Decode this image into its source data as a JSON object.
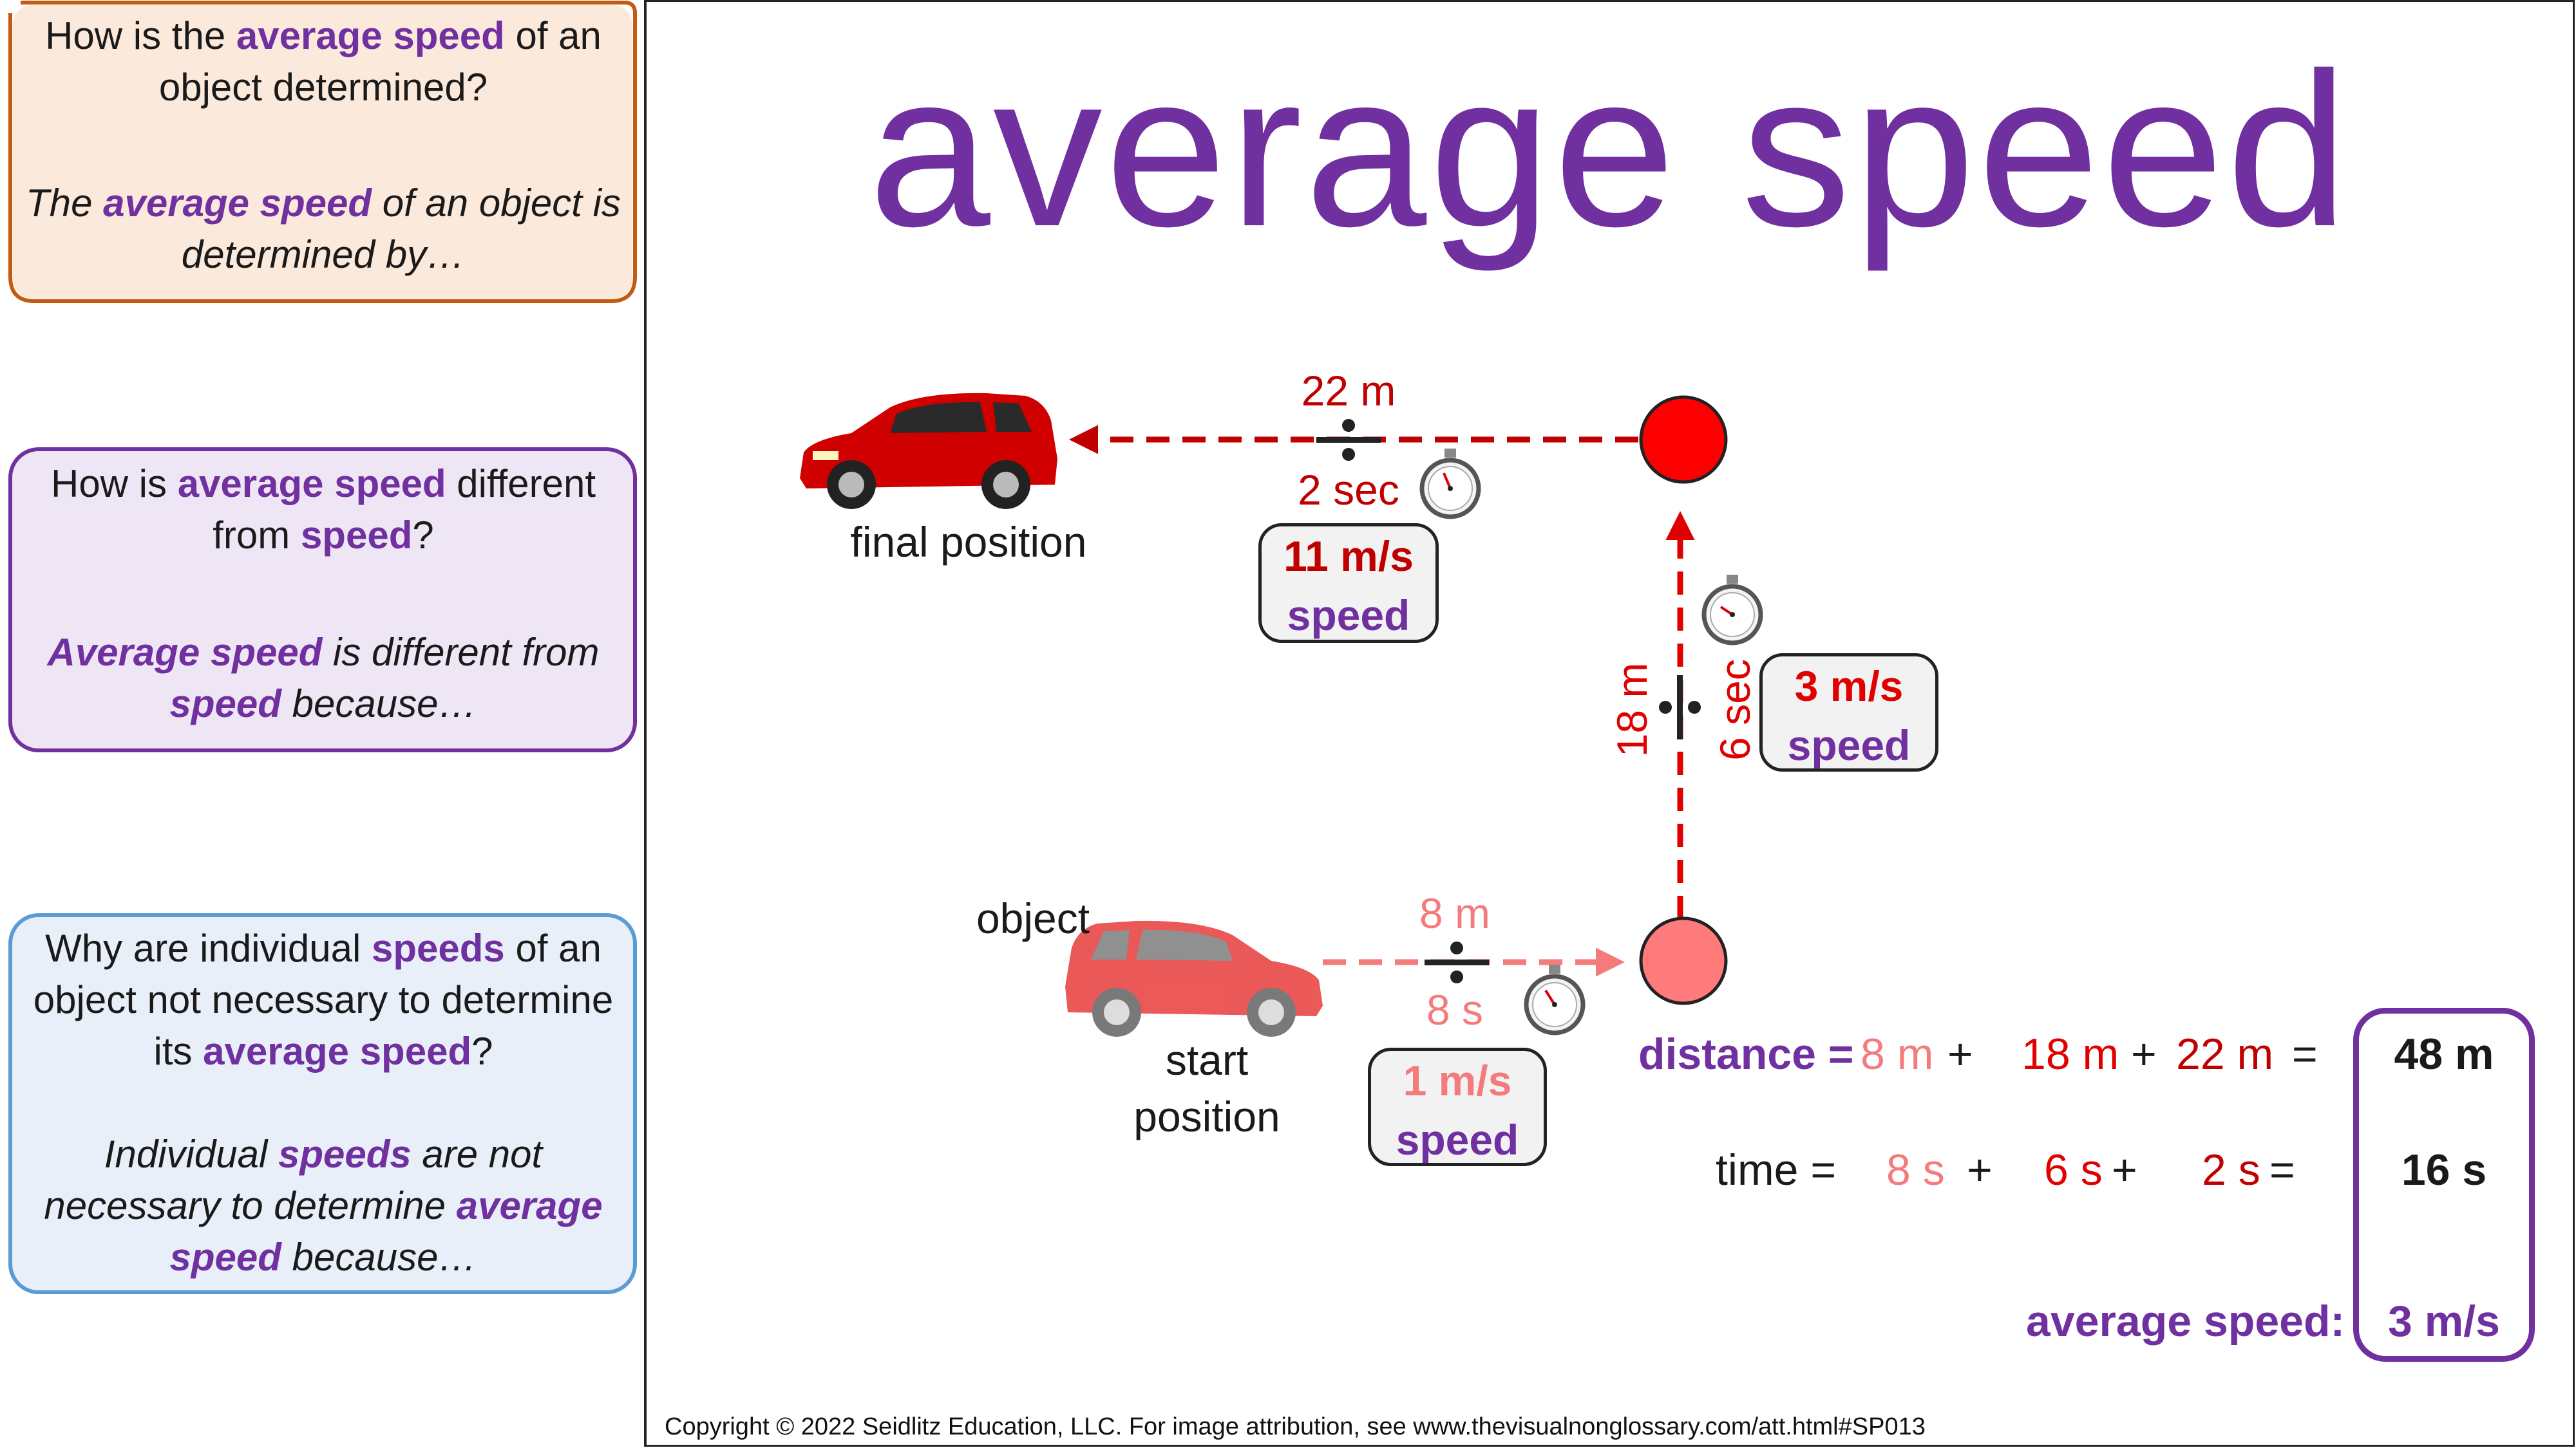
{
  "questions": [
    {
      "q_parts": [
        "How is the ",
        "average speed",
        " of an object determined?"
      ],
      "a_parts": [
        "The ",
        "average speed",
        " of an object is determined by…"
      ],
      "border_color": "#c55a11",
      "fill_color": "#fbe9dc"
    },
    {
      "q_parts": [
        "How is ",
        "average speed",
        " different from ",
        "speed",
        "?"
      ],
      "a_parts": [
        "Average speed",
        " is different from ",
        "speed",
        " because…"
      ],
      "border_color": "#7030a0",
      "fill_color": "#eee5f5"
    },
    {
      "q_parts": [
        "Why are individual ",
        "speeds",
        " of an object not necessary to determine its ",
        "average speed",
        "?"
      ],
      "a_parts": [
        "Individual ",
        "speeds",
        " are not necessary to determine ",
        "average speed",
        " because…"
      ],
      "border_color": "#5b9bd5",
      "fill_color": "#e8eff8"
    }
  ],
  "title": "average speed",
  "diagram": {
    "final_label": "final position",
    "object_label": "object",
    "start_label": "start position",
    "leg1": {
      "distance": "8 m",
      "time": "8 s",
      "speed": "1 m/s",
      "word": "speed",
      "color": "#f47b7b"
    },
    "leg2": {
      "distance": "18 m",
      "time": "6 sec",
      "speed": "3 m/s",
      "word": "speed",
      "color": "#e00000"
    },
    "leg3": {
      "distance": "22 m",
      "time": "2 sec",
      "speed": "11 m/s",
      "word": "speed",
      "color": "#c00000"
    },
    "point_colors": {
      "start": "#ff7a7a",
      "end": "#ff0000"
    }
  },
  "equations": {
    "distance_label": "distance =",
    "d1": "8 m",
    "d2": "18 m",
    "d3": "22 m",
    "time_label": "time =",
    "t1": "8 s",
    "t2": "6 s",
    "t3": "2 s",
    "plus": "+",
    "equals": "=",
    "total_distance": "48 m",
    "total_time": "16 s",
    "avg_label": "average speed:",
    "avg_value": "3 m/s"
  },
  "copyright": "Copyright © 2022 Seidlitz Education, LLC.  For image attribution, see www.thevisualnonglossary.com/att.html#SP013"
}
